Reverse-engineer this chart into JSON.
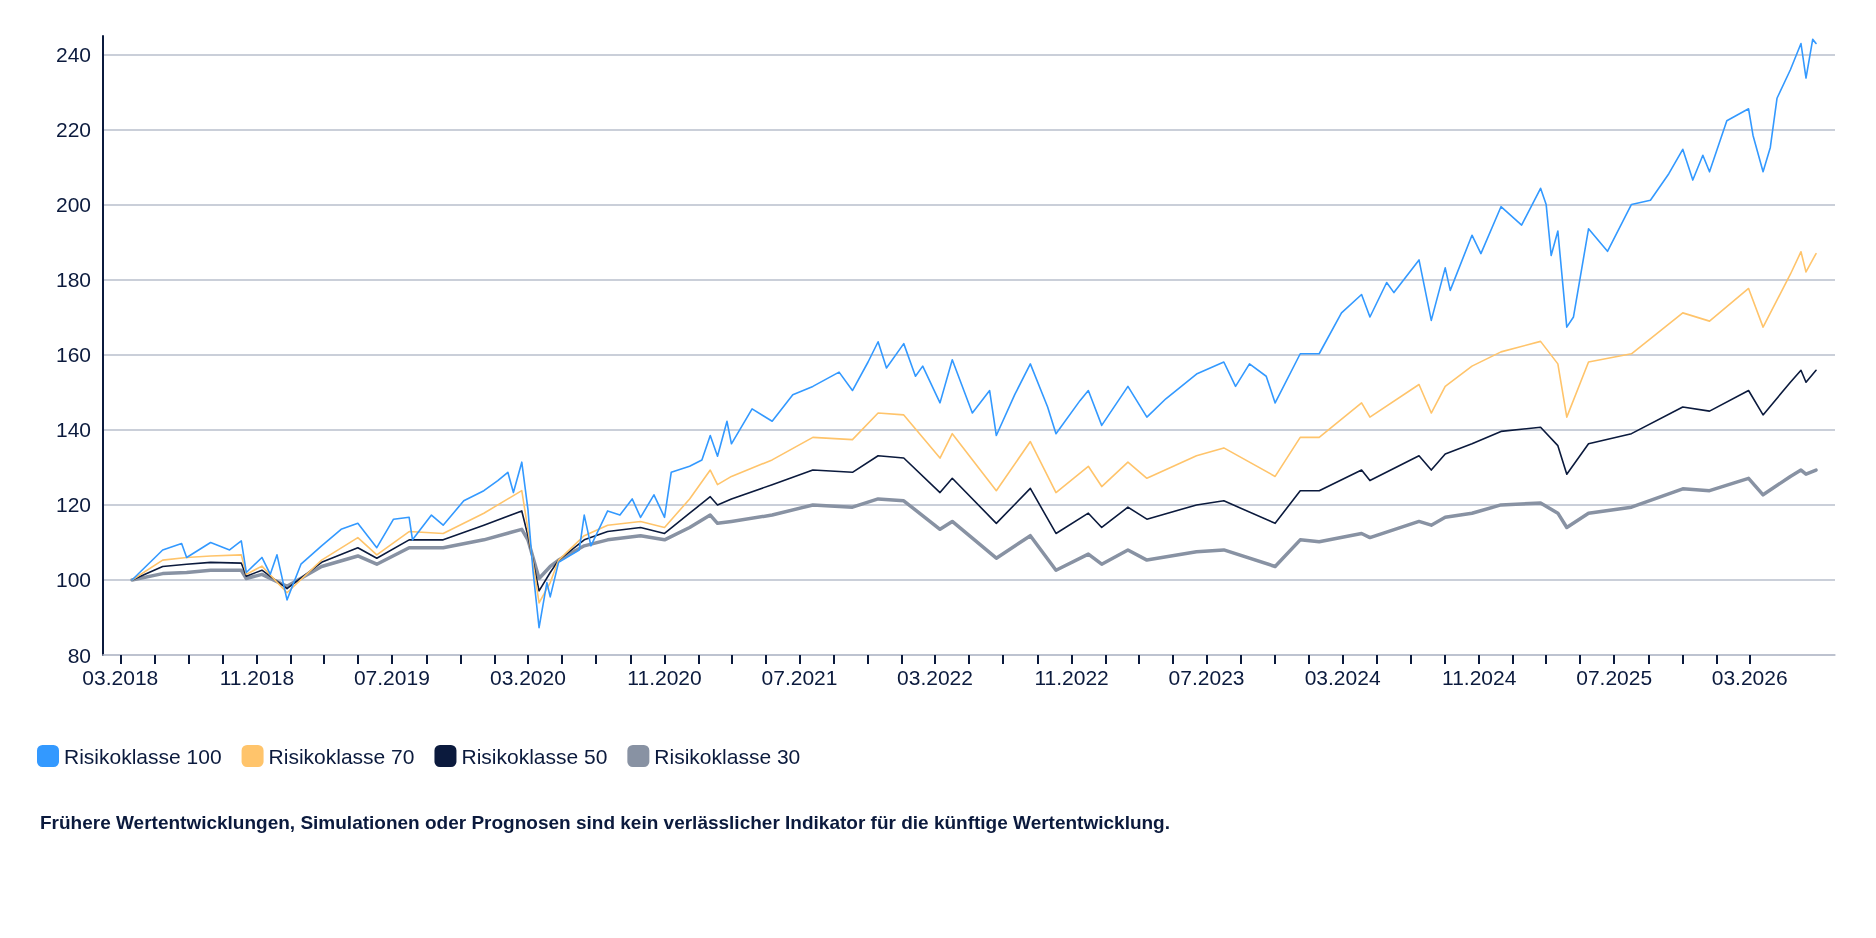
{
  "chart_data": {
    "type": "line",
    "xlim": [
      "2018-01-29",
      "2026-08-01"
    ],
    "ylim": [
      80,
      245
    ],
    "yticks": [
      80,
      100,
      120,
      140,
      160,
      180,
      200,
      220,
      240
    ],
    "xticks": [
      {
        "value": "2018-03",
        "label": "03.2018"
      },
      {
        "value": "2018-05",
        "label": null
      },
      {
        "value": "2018-07",
        "label": null
      },
      {
        "value": "2018-09",
        "label": null
      },
      {
        "value": "2018-11",
        "label": "11.2018"
      },
      {
        "value": "2019-01",
        "label": null
      },
      {
        "value": "2019-03",
        "label": null
      },
      {
        "value": "2019-05",
        "label": null
      },
      {
        "value": "2019-07",
        "label": "07.2019"
      },
      {
        "value": "2019-09",
        "label": null
      },
      {
        "value": "2019-11",
        "label": null
      },
      {
        "value": "2020-01",
        "label": null
      },
      {
        "value": "2020-03",
        "label": "03.2020"
      },
      {
        "value": "2020-05",
        "label": null
      },
      {
        "value": "2020-07",
        "label": null
      },
      {
        "value": "2020-09",
        "label": null
      },
      {
        "value": "2020-11",
        "label": "11.2020"
      },
      {
        "value": "2021-01",
        "label": null
      },
      {
        "value": "2021-03",
        "label": null
      },
      {
        "value": "2021-05",
        "label": null
      },
      {
        "value": "2021-07",
        "label": "07.2021"
      },
      {
        "value": "2021-09",
        "label": null
      },
      {
        "value": "2021-11",
        "label": null
      },
      {
        "value": "2022-01",
        "label": null
      },
      {
        "value": "2022-03",
        "label": "03.2022"
      },
      {
        "value": "2022-05",
        "label": null
      },
      {
        "value": "2022-07",
        "label": null
      },
      {
        "value": "2022-09",
        "label": null
      },
      {
        "value": "2022-11",
        "label": "11.2022"
      },
      {
        "value": "2023-01",
        "label": null
      },
      {
        "value": "2023-03",
        "label": null
      },
      {
        "value": "2023-05",
        "label": null
      },
      {
        "value": "2023-07",
        "label": "07.2023"
      },
      {
        "value": "2023-09",
        "label": null
      },
      {
        "value": "2023-11",
        "label": null
      },
      {
        "value": "2024-01",
        "label": null
      },
      {
        "value": "2024-03",
        "label": "03.2024"
      },
      {
        "value": "2024-05",
        "label": null
      },
      {
        "value": "2024-07",
        "label": null
      },
      {
        "value": "2024-09",
        "label": null
      },
      {
        "value": "2024-11",
        "label": "11.2024"
      },
      {
        "value": "2025-01",
        "label": null
      },
      {
        "value": "2025-03",
        "label": null
      },
      {
        "value": "2025-05",
        "label": null
      },
      {
        "value": "2025-07",
        "label": "07.2025"
      },
      {
        "value": "2025-09",
        "label": null
      },
      {
        "value": "2025-11",
        "label": null
      },
      {
        "value": "2026-01",
        "label": null
      },
      {
        "value": "2026-03",
        "label": "03.2026"
      }
    ],
    "grid": "y",
    "legend": "bottom left",
    "marker": "none",
    "annotations": [
      "Frühere Wertentwicklungen, Simulationen oder Prognosen sind kein verlässlicher Indikator für die künftige Wertentwicklung."
    ],
    "series": [
      {
        "name": "Risikoklasse 100",
        "color": "#3399ff",
        "x": [
          "2018-03-22",
          "2018-05-16",
          "2018-06-19",
          "2018-06-28",
          "2018-08-10",
          "2018-09-13",
          "2018-10-04",
          "2018-10-13",
          "2018-11-10",
          "2018-11-25",
          "2018-12-07",
          "2018-12-25",
          "2019-01-19",
          "2019-02-25",
          "2019-04-01",
          "2019-05-01",
          "2019-06-04",
          "2019-07-04",
          "2019-08-01",
          "2019-08-07",
          "2019-09-10",
          "2019-10-01",
          "2019-11-07",
          "2019-12-13",
          "2020-01-07",
          "2020-01-25",
          "2020-02-04",
          "2020-02-19",
          "2020-03-01",
          "2020-03-10",
          "2020-03-21",
          "2020-04-04",
          "2020-04-10",
          "2020-04-25",
          "2020-06-01",
          "2020-06-10",
          "2020-06-22",
          "2020-07-22",
          "2020-08-13",
          "2020-09-04",
          "2020-09-19",
          "2020-10-13",
          "2020-11-01",
          "2020-11-13",
          "2020-12-16",
          "2021-01-07",
          "2021-01-22",
          "2021-02-04",
          "2021-02-21",
          "2021-03-01",
          "2021-04-07",
          "2021-05-13",
          "2021-06-19",
          "2021-07-25",
          "2021-09-10",
          "2021-10-04",
          "2021-11-01",
          "2021-11-19",
          "2021-12-04",
          "2022-01-04",
          "2022-01-25",
          "2022-02-07",
          "2022-03-10",
          "2022-04-01",
          "2022-05-07",
          "2022-06-07",
          "2022-06-19",
          "2022-07-22",
          "2022-08-19",
          "2022-09-19",
          "2022-10-04",
          "2022-11-16",
          "2022-12-01",
          "2022-12-25",
          "2023-02-10",
          "2023-03-16",
          "2023-04-19",
          "2023-06-13",
          "2023-08-01",
          "2023-08-22",
          "2023-09-16",
          "2023-10-16",
          "2023-11-01",
          "2023-12-16",
          "2024-01-19",
          "2024-02-28",
          "2024-04-04",
          "2024-04-19",
          "2024-05-19",
          "2024-06-01",
          "2024-07-16",
          "2024-08-07",
          "2024-09-01",
          "2024-09-10",
          "2024-10-19",
          "2024-11-04",
          "2024-12-10",
          "2025-01-16",
          "2025-02-19",
          "2025-03-01",
          "2025-03-10",
          "2025-03-22",
          "2025-04-07",
          "2025-04-19",
          "2025-05-16",
          "2025-06-19",
          "2025-08-01",
          "2025-09-04",
          "2025-10-07",
          "2025-11-01",
          "2025-11-19",
          "2025-12-07",
          "2025-12-19",
          "2026-01-19",
          "2026-02-27",
          "2026-03-07",
          "2026-03-25",
          "2026-04-07",
          "2026-04-19",
          "2026-05-13",
          "2026-06-01",
          "2026-06-10",
          "2026-06-22",
          "2026-06-28"
        ],
        "values": [
          100,
          108,
          109.7,
          106,
          110,
          108,
          110.4,
          102,
          106,
          101.5,
          106.7,
          94.7,
          104.2,
          109.1,
          113.5,
          115.1,
          108.6,
          116.2,
          116.7,
          110.7,
          117.3,
          114.6,
          121.1,
          123.8,
          126.5,
          128.7,
          123.3,
          131.4,
          118.9,
          102.6,
          87.3,
          99.3,
          95.5,
          104.7,
          108,
          117.3,
          109.1,
          118.4,
          117.3,
          121.6,
          116.7,
          122.7,
          116.7,
          128.7,
          130.3,
          132,
          138.5,
          133,
          142.3,
          136.3,
          145.6,
          142.3,
          149.4,
          151.6,
          155.4,
          150.5,
          158.1,
          163.5,
          156.5,
          163,
          154.3,
          157,
          147.2,
          158.7,
          144.5,
          150.5,
          138.5,
          149.4,
          157.6,
          146.1,
          139,
          147.8,
          150.5,
          141.2,
          151.6,
          143.4,
          148.3,
          154.9,
          158.1,
          151.6,
          157.6,
          154.3,
          147.2,
          160.3,
          160.3,
          171.2,
          176.1,
          170.1,
          179.3,
          176.6,
          185.3,
          169.2,
          183.2,
          177.2,
          191.9,
          187,
          199.5,
          194.6,
          204.4,
          200.1,
          186.5,
          193,
          167.4,
          170.1,
          193.6,
          187.6,
          200.1,
          201.2,
          208.3,
          214.8,
          206.6,
          213.2,
          208.8,
          222.4,
          225.6,
          218.5,
          208.8,
          215.3,
          228.4,
          236,
          243,
          233.8,
          244.1,
          243
        ]
      },
      {
        "name": "Risikoklasse 70",
        "color": "#ffc46b",
        "x": [
          "2018-03-22",
          "2018-05-16",
          "2018-06-28",
          "2018-08-10",
          "2018-10-04",
          "2018-10-13",
          "2018-11-10",
          "2018-12-25",
          "2019-02-25",
          "2019-05-01",
          "2019-06-04",
          "2019-08-01",
          "2019-10-01",
          "2019-12-13",
          "2020-02-19",
          "2020-03-01",
          "2020-03-21",
          "2020-04-10",
          "2020-04-25",
          "2020-06-10",
          "2020-07-22",
          "2020-09-19",
          "2020-11-01",
          "2020-12-16",
          "2021-01-22",
          "2021-02-04",
          "2021-03-01",
          "2021-05-13",
          "2021-07-25",
          "2021-10-04",
          "2021-11-19",
          "2022-01-04",
          "2022-03-10",
          "2022-04-01",
          "2022-06-19",
          "2022-08-19",
          "2022-10-04",
          "2022-12-01",
          "2022-12-25",
          "2023-02-10",
          "2023-03-16",
          "2023-06-13",
          "2023-08-01",
          "2023-11-01",
          "2023-12-16",
          "2024-01-19",
          "2024-04-04",
          "2024-04-19",
          "2024-07-16",
          "2024-08-07",
          "2024-09-01",
          "2024-10-19",
          "2024-12-10",
          "2025-02-19",
          "2025-03-22",
          "2025-04-07",
          "2025-05-16",
          "2025-08-01",
          "2025-11-01",
          "2025-12-19",
          "2026-02-27",
          "2026-03-25",
          "2026-05-13",
          "2026-06-01",
          "2026-06-10",
          "2026-06-28"
        ],
        "values": [
          100,
          105.3,
          106,
          106.4,
          106.7,
          101.5,
          103.7,
          96.6,
          105.3,
          111.3,
          106.7,
          112.9,
          112.4,
          117.8,
          123.8,
          113.5,
          93.9,
          99.3,
          105.3,
          111.8,
          114.6,
          115.6,
          114,
          121.6,
          129.3,
          125.4,
          127.6,
          132,
          138,
          137.4,
          144.5,
          144,
          132.5,
          139,
          123.8,
          136.9,
          123.3,
          130.3,
          124.9,
          131.4,
          127.1,
          133.1,
          135.2,
          127.6,
          138,
          138,
          147.2,
          143.4,
          152.1,
          144.5,
          151.6,
          157,
          160.8,
          163.6,
          157.6,
          143.4,
          158.1,
          160.3,
          171.2,
          169,
          177.7,
          167.4,
          181.5,
          187.5,
          182.1,
          187
        ]
      },
      {
        "name": "Risikoklasse 50",
        "color": "#0b1a3d",
        "x": [
          "2018-03-22",
          "2018-05-16",
          "2018-06-28",
          "2018-08-10",
          "2018-10-04",
          "2018-10-13",
          "2018-11-10",
          "2018-12-25",
          "2019-02-25",
          "2019-05-01",
          "2019-06-04",
          "2019-08-01",
          "2019-10-01",
          "2019-12-13",
          "2020-02-19",
          "2020-03-01",
          "2020-03-21",
          "2020-04-10",
          "2020-04-25",
          "2020-06-10",
          "2020-07-22",
          "2020-09-19",
          "2020-11-01",
          "2020-12-16",
          "2021-01-22",
          "2021-02-04",
          "2021-03-01",
          "2021-05-13",
          "2021-07-25",
          "2021-10-04",
          "2021-11-19",
          "2022-01-04",
          "2022-03-10",
          "2022-04-01",
          "2022-06-19",
          "2022-08-19",
          "2022-10-04",
          "2022-12-01",
          "2022-12-25",
          "2023-02-10",
          "2023-03-16",
          "2023-06-13",
          "2023-08-01",
          "2023-11-01",
          "2023-12-16",
          "2024-01-19",
          "2024-04-04",
          "2024-04-19",
          "2024-07-16",
          "2024-08-07",
          "2024-09-01",
          "2024-10-19",
          "2024-12-10",
          "2025-02-19",
          "2025-03-22",
          "2025-04-07",
          "2025-05-16",
          "2025-08-01",
          "2025-11-01",
          "2025-12-19",
          "2026-02-27",
          "2026-03-25",
          "2026-05-13",
          "2026-06-01",
          "2026-06-10",
          "2026-06-28"
        ],
        "values": [
          100,
          103.6,
          104.2,
          104.7,
          104.5,
          101,
          102.6,
          97.7,
          104.7,
          108.6,
          105.8,
          110.7,
          110.7,
          114.6,
          118.4,
          111.8,
          97.1,
          102,
          105.3,
          110.7,
          112.9,
          114,
          112.4,
          117.8,
          122.2,
          120,
          121.6,
          125.4,
          129.3,
          128.7,
          133.1,
          132.5,
          123.3,
          127.1,
          115.1,
          124.4,
          112.4,
          117.8,
          114,
          119.4,
          116.2,
          120,
          121.1,
          115.1,
          123.8,
          123.8,
          129.3,
          126.5,
          133.1,
          129.3,
          133.6,
          136.3,
          139.6,
          140.7,
          135.8,
          128.2,
          136.3,
          139,
          146.1,
          145,
          150.5,
          144,
          152.7,
          155.9,
          152.7,
          155.9
        ]
      },
      {
        "name": "Risikoklasse 30",
        "color": "#8892a3",
        "x": [
          "2018-03-22",
          "2018-05-16",
          "2018-06-28",
          "2018-08-10",
          "2018-10-04",
          "2018-10-13",
          "2018-11-10",
          "2018-12-25",
          "2019-02-25",
          "2019-05-01",
          "2019-06-04",
          "2019-08-01",
          "2019-10-01",
          "2019-12-13",
          "2020-02-19",
          "2020-03-01",
          "2020-03-21",
          "2020-04-10",
          "2020-04-25",
          "2020-06-10",
          "2020-07-22",
          "2020-09-19",
          "2020-11-01",
          "2020-12-16",
          "2021-01-22",
          "2021-02-04",
          "2021-03-01",
          "2021-05-13",
          "2021-07-25",
          "2021-10-04",
          "2021-11-19",
          "2022-01-04",
          "2022-03-10",
          "2022-04-01",
          "2022-06-19",
          "2022-08-19",
          "2022-10-04",
          "2022-12-01",
          "2022-12-25",
          "2023-02-10",
          "2023-03-16",
          "2023-06-13",
          "2023-08-01",
          "2023-11-01",
          "2023-12-16",
          "2024-01-19",
          "2024-04-04",
          "2024-04-19",
          "2024-07-16",
          "2024-08-07",
          "2024-09-01",
          "2024-10-19",
          "2024-12-10",
          "2025-02-19",
          "2025-03-22",
          "2025-04-07",
          "2025-05-16",
          "2025-08-01",
          "2025-11-01",
          "2025-12-19",
          "2026-02-27",
          "2026-03-25",
          "2026-05-13",
          "2026-06-01",
          "2026-06-10",
          "2026-06-28"
        ],
        "values": [
          100,
          101.7,
          102,
          102.6,
          102.6,
          100.4,
          101.5,
          98.3,
          103.6,
          106.4,
          104.2,
          108.6,
          108.6,
          110.7,
          113.5,
          110.7,
          100.4,
          103.6,
          105.3,
          109.1,
          110.7,
          111.8,
          110.7,
          114,
          117.3,
          115.1,
          115.6,
          117.3,
          120,
          119.4,
          121.6,
          121.1,
          113.5,
          115.6,
          105.8,
          111.8,
          102.6,
          106.9,
          104.2,
          108,
          105.3,
          107.5,
          108,
          103.6,
          110.7,
          110.2,
          112.4,
          111.3,
          115.6,
          114.6,
          116.7,
          117.8,
          120,
          120.5,
          117.8,
          114,
          117.8,
          119.4,
          124.3,
          123.8,
          127.1,
          122.7,
          127.6,
          129.3,
          128.2,
          129.3
        ]
      }
    ]
  }
}
